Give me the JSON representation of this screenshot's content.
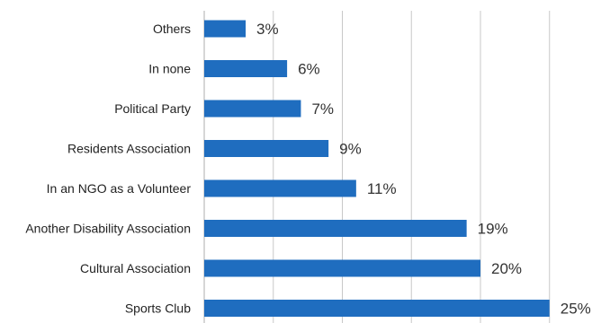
{
  "chart_data": {
    "type": "bar",
    "orientation": "horizontal",
    "categories": [
      "Others",
      "In none",
      "Political Party",
      "Residents Association",
      "In an NGO as a Volunteer",
      "Another Disability Association",
      "Cultural Association",
      "Sports Club"
    ],
    "values": [
      3,
      6,
      7,
      9,
      11,
      19,
      20,
      25
    ],
    "value_labels": [
      "3%",
      "6%",
      "7%",
      "9%",
      "11%",
      "19%",
      "20%",
      "25%"
    ],
    "unit": "%",
    "xlim": [
      0,
      25
    ],
    "grid": true,
    "bar_color": "#1f6dbf",
    "grid_color": "#c8c8c8"
  }
}
